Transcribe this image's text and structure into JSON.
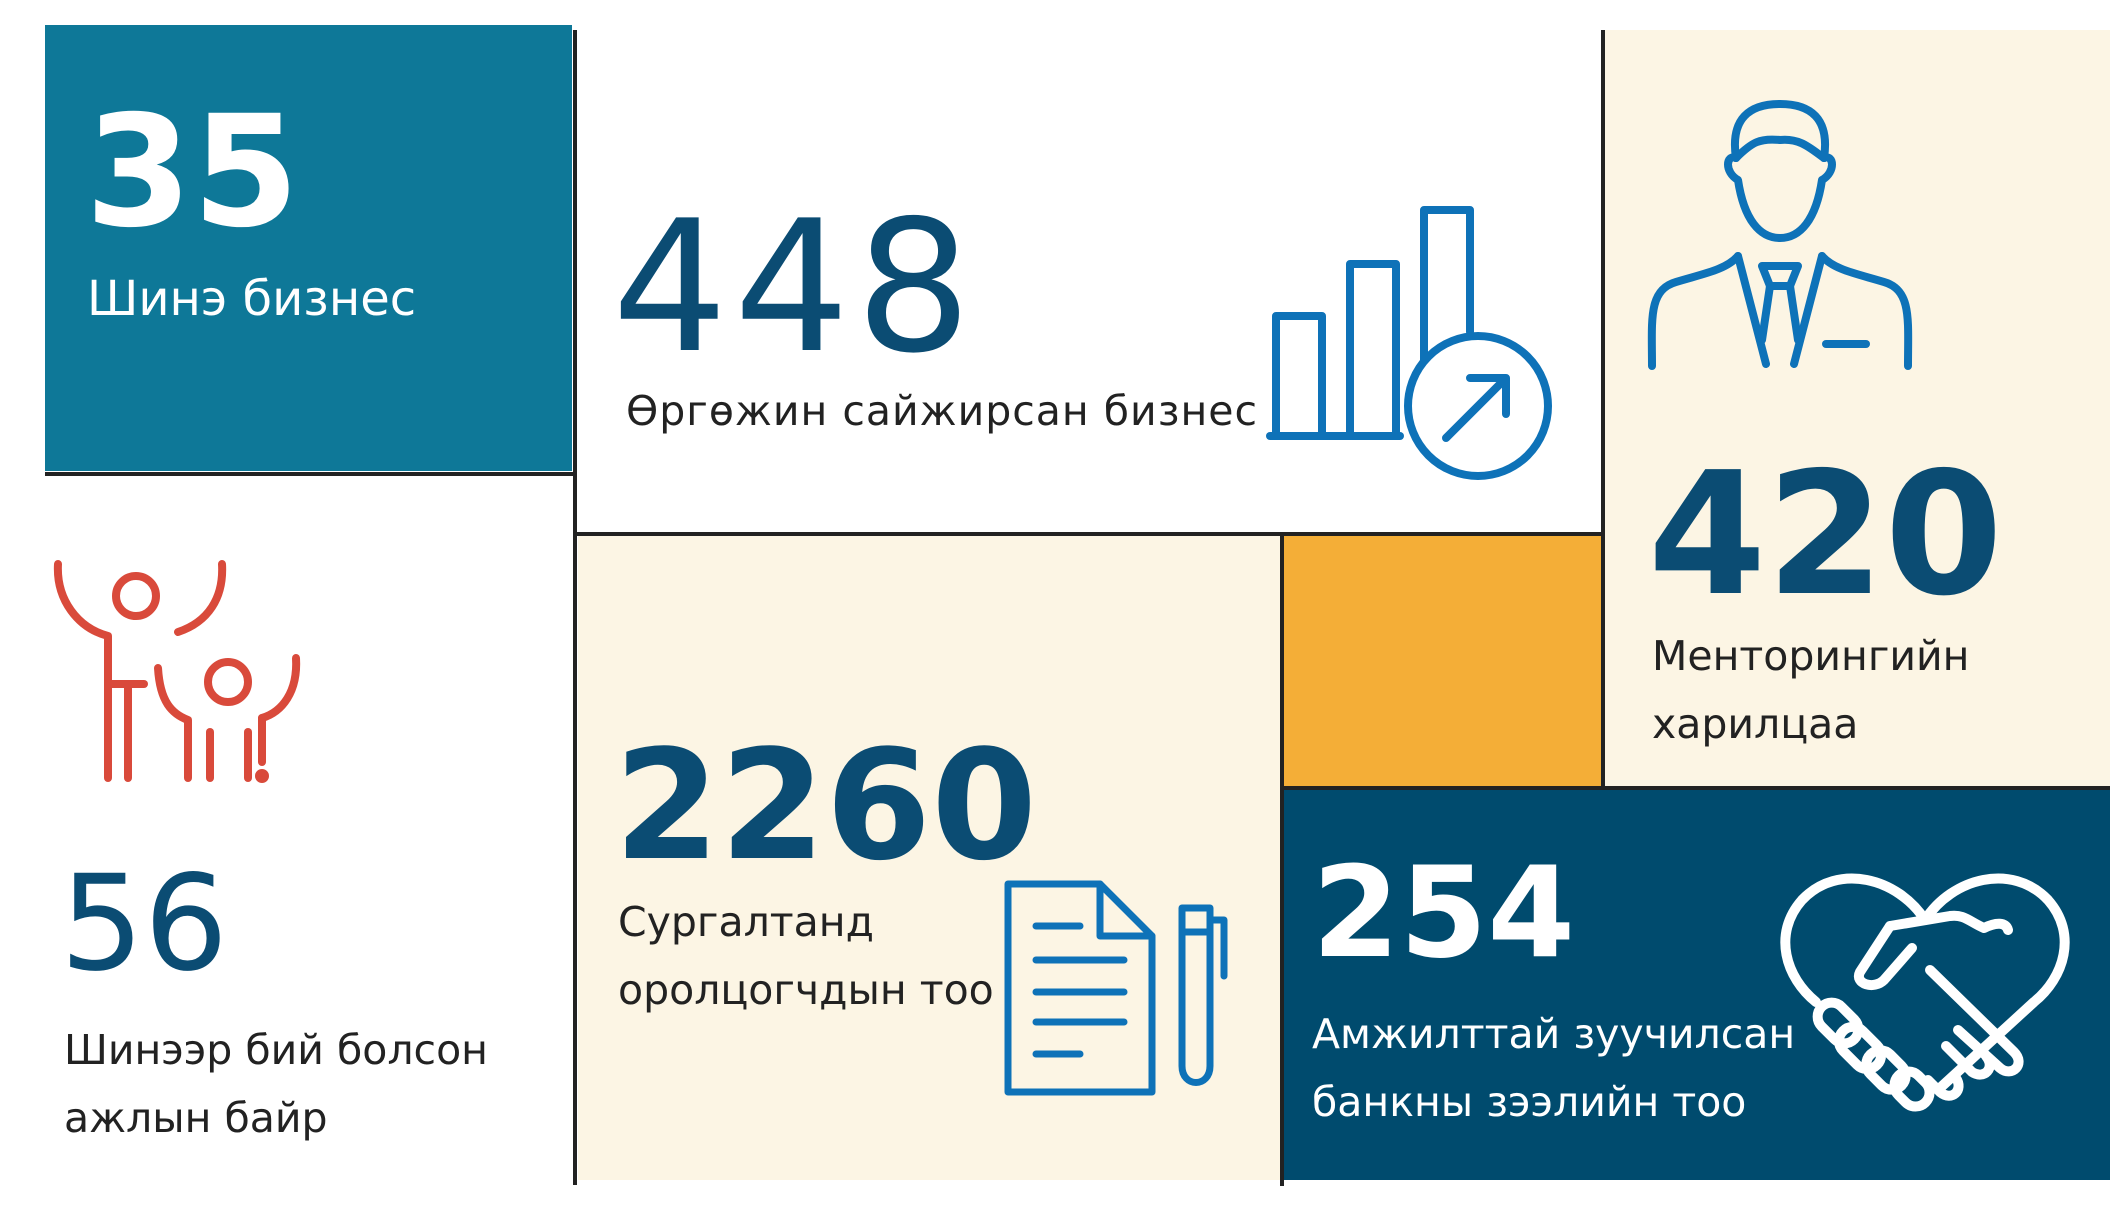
{
  "colors": {
    "teal": "#0E7898",
    "navy": "#004B6E",
    "dark_blue": "#0B4C73",
    "cream": "#FCF5E4",
    "orange": "#F4AE37",
    "icon_blue": "#0E72B8",
    "red": "#D94A3B",
    "divider": "#222222"
  },
  "stats": {
    "new_business": {
      "value": "35",
      "label": "Шинэ бизнес"
    },
    "expanded_business": {
      "value": "448",
      "label": "Өргөжин сайжирсан бизнес"
    },
    "mentoring": {
      "value": "420",
      "label": "Менторингийн\nхарилцаа"
    },
    "new_jobs": {
      "value": "56",
      "label": "Шинээр бий болсон\nажлын байр"
    },
    "training": {
      "value": "2260",
      "label": "Сургалтанд\nоролцогчдын тоо"
    },
    "loans": {
      "value": "254",
      "label": "Амжилттай зуучилсан\nбанкны зээлийн тоо"
    }
  },
  "icons": {
    "growth_chart": "bar-chart-arrow-icon",
    "businessman": "businessman-icon",
    "family": "family-celebrating-icon",
    "document": "document-pen-icon",
    "handshake": "handshake-heart-icon"
  }
}
